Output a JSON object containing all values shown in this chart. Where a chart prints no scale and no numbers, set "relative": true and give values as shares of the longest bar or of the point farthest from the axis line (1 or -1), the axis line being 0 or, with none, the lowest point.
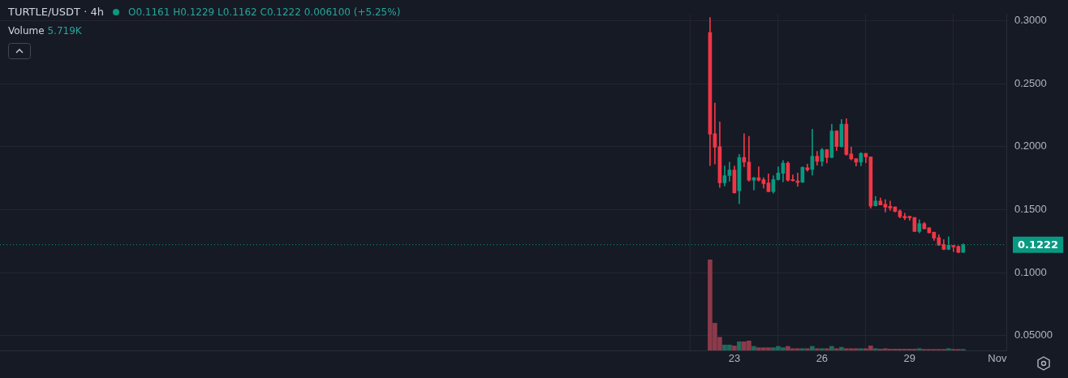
{
  "chart_data": [
    {
      "type": "candlestick",
      "title": "TURTLE/USDT · 4h",
      "annotations": [
        "O0.1161 H0.1229 L0.1162 C0.1222 0.006100 (+5.25%)"
      ],
      "x": [
        22.167,
        22.333,
        22.5,
        22.667,
        22.833,
        23,
        23.167,
        23.333,
        23.5,
        23.667,
        23.833,
        24,
        24.167,
        24.333,
        24.5,
        24.667,
        24.833,
        25,
        25.167,
        25.333,
        25.5,
        25.667,
        25.833,
        26,
        26.167,
        26.333,
        26.5,
        26.667,
        26.833,
        27,
        27.167,
        27.333,
        27.5,
        27.667,
        27.833,
        28,
        28.167,
        28.333,
        28.5,
        28.667,
        28.833,
        29,
        29.167,
        29.333,
        29.5,
        29.667,
        29.833,
        30,
        30.167,
        30.333,
        30.5,
        30.667,
        30.833
      ],
      "ohlc": [
        [
          0.2906,
          0.3025,
          0.185,
          0.2099
        ],
        [
          0.2103,
          0.2346,
          0.1862,
          0.1996
        ],
        [
          0.1999,
          0.2196,
          0.1675,
          0.1712
        ],
        [
          0.1712,
          0.1846,
          0.1687,
          0.177
        ],
        [
          0.177,
          0.1877,
          0.1726,
          0.1815
        ],
        [
          0.1815,
          0.1846,
          0.163,
          0.1634
        ],
        [
          0.165,
          0.1938,
          0.1547,
          0.1914
        ],
        [
          0.1914,
          0.2103,
          0.184,
          0.1877
        ],
        [
          0.1877,
          0.2082,
          0.1726,
          0.1733
        ],
        [
          0.1733,
          0.1757,
          0.1656,
          0.1753
        ],
        [
          0.1753,
          0.184,
          0.1726,
          0.1733
        ],
        [
          0.1737,
          0.1753,
          0.1671,
          0.1706
        ],
        [
          0.1712,
          0.1784,
          0.164,
          0.1644
        ],
        [
          0.1644,
          0.177,
          0.163,
          0.1739
        ],
        [
          0.1739,
          0.184,
          0.1733,
          0.179
        ],
        [
          0.1788,
          0.1891,
          0.172,
          0.187
        ],
        [
          0.187,
          0.188,
          0.1726,
          0.1733
        ],
        [
          0.1739,
          0.1776,
          0.1726,
          0.1731
        ],
        [
          0.1728,
          0.179,
          0.1685,
          0.1716
        ],
        [
          0.1718,
          0.184,
          0.1716,
          0.1835
        ],
        [
          0.1832,
          0.1862,
          0.1805,
          0.1815
        ],
        [
          0.1819,
          0.2138,
          0.1774,
          0.1924
        ],
        [
          0.1924,
          0.1963,
          0.1852,
          0.1883
        ],
        [
          0.1883,
          0.1986,
          0.1846,
          0.1975
        ],
        [
          0.1975,
          0.1979,
          0.187,
          0.1914
        ],
        [
          0.1914,
          0.2179,
          0.1912,
          0.2123
        ],
        [
          0.2123,
          0.2129,
          0.1969,
          0.2
        ],
        [
          0.2,
          0.2216,
          0.1996,
          0.2179
        ],
        [
          0.2179,
          0.2222,
          0.1932,
          0.1938
        ],
        [
          0.1941,
          0.1996,
          0.1895,
          0.1903
        ],
        [
          0.1905,
          0.1905,
          0.1846,
          0.1877
        ],
        [
          0.1877,
          0.1953,
          0.1848,
          0.1947
        ],
        [
          0.1947,
          0.1947,
          0.1872,
          0.1918
        ],
        [
          0.192,
          0.192,
          0.1512,
          0.1527
        ],
        [
          0.1531,
          0.1605,
          0.1527,
          0.1568
        ],
        [
          0.1568,
          0.1593,
          0.1537,
          0.1537
        ],
        [
          0.1543,
          0.158,
          0.1481,
          0.152
        ],
        [
          0.1527,
          0.1568,
          0.1494,
          0.1512
        ],
        [
          0.1521,
          0.1521,
          0.1481,
          0.1486
        ],
        [
          0.149,
          0.15,
          0.1434,
          0.1444
        ],
        [
          0.1447,
          0.1472,
          0.142,
          0.1434
        ],
        [
          0.1447,
          0.1447,
          0.1415,
          0.1435
        ],
        [
          0.1438,
          0.1438,
          0.1327,
          0.1327
        ],
        [
          0.1327,
          0.142,
          0.1315,
          0.1389
        ],
        [
          0.1389,
          0.14,
          0.1348,
          0.1348
        ],
        [
          0.1356,
          0.1356,
          0.1313,
          0.1317
        ],
        [
          0.1321,
          0.1323,
          0.1255,
          0.1274
        ],
        [
          0.1278,
          0.1302,
          0.1216,
          0.1218
        ],
        [
          0.1224,
          0.1263,
          0.1182,
          0.1185
        ],
        [
          0.1185,
          0.1286,
          0.1182,
          0.1218
        ],
        [
          0.1216,
          0.1218,
          0.1167,
          0.1204
        ],
        [
          0.1208,
          0.1212,
          0.1158,
          0.1161
        ],
        [
          0.1161,
          0.1229,
          0.116,
          0.1222
        ]
      ],
      "colors": [
        "#f23645",
        "#f23645",
        "#f23645",
        "#089981",
        "#089981",
        "#f23645",
        "#089981",
        "#f23645",
        "#f23645",
        "#089981",
        "#f23645",
        "#f23645",
        "#f23645",
        "#089981",
        "#089981",
        "#089981",
        "#f23645",
        "#f23645",
        "#f23645",
        "#089981",
        "#f23645",
        "#089981",
        "#f23645",
        "#089981",
        "#f23645",
        "#089981",
        "#f23645",
        "#089981",
        "#f23645",
        "#f23645",
        "#f23645",
        "#089981",
        "#f23645",
        "#f23645",
        "#089981",
        "#f23645",
        "#f23645",
        "#f23645",
        "#f23645",
        "#f23645",
        "#f23645",
        "#f23645",
        "#f23645",
        "#089981",
        "#f23645",
        "#f23645",
        "#f23645",
        "#f23645",
        "#f23645",
        "#089981",
        "#f23645",
        "#f23645",
        "#089981"
      ],
      "xlim": [
        -2.14,
        32.31
      ],
      "xticks": [
        23,
        26,
        29,
        {
          "value": 32,
          "label": "Nov"
        }
      ],
      "ylim": [
        0.0383,
        0.3049
      ],
      "yticks": [
        {
          "value": 0.05,
          "label": "0.05000"
        },
        {
          "value": 0.1,
          "label": "0.1000"
        },
        {
          "value": 0.15,
          "label": "0.1500"
        },
        {
          "value": 0.2,
          "label": "0.2000"
        },
        {
          "value": 0.25,
          "label": "0.2500"
        },
        {
          "value": 0.3,
          "label": "0.3000"
        }
      ],
      "ref_lines": [
        {
          "axis": "y",
          "value": 0.1222,
          "label": "0.1222",
          "color": "#089981",
          "line_style": "dotted"
        }
      ],
      "grid": true
    },
    {
      "type": "bar",
      "title": "Volume",
      "annotations": [
        "5.719K"
      ],
      "relative": true,
      "tick_labels": false,
      "x": [
        22.167,
        22.333,
        22.5,
        22.667,
        22.833,
        23,
        23.167,
        23.333,
        23.5,
        23.667,
        23.833,
        24,
        24.167,
        24.333,
        24.5,
        24.667,
        24.833,
        25,
        25.167,
        25.333,
        25.5,
        25.667,
        25.833,
        26,
        26.167,
        26.333,
        26.5,
        26.667,
        26.833,
        27,
        27.167,
        27.333,
        27.5,
        27.667,
        27.833,
        28,
        28.167,
        28.333,
        28.5,
        28.667,
        28.833,
        29,
        29.167,
        29.333,
        29.5,
        29.667,
        29.833,
        30,
        30.167,
        30.333,
        30.5,
        30.667,
        30.833
      ],
      "xlim": [
        -2.14,
        32.31
      ],
      "colors": [
        "#8e3a4a",
        "#8e3a4a",
        "#8e3a4a",
        "#1f6b5c",
        "#1f6b5c",
        "#8e3a4a",
        "#1f6b5c",
        "#8e3a4a",
        "#8e3a4a",
        "#1f6b5c",
        "#8e3a4a",
        "#8e3a4a",
        "#8e3a4a",
        "#1f6b5c",
        "#1f6b5c",
        "#1f6b5c",
        "#8e3a4a",
        "#8e3a4a",
        "#8e3a4a",
        "#1f6b5c",
        "#8e3a4a",
        "#1f6b5c",
        "#8e3a4a",
        "#1f6b5c",
        "#8e3a4a",
        "#1f6b5c",
        "#8e3a4a",
        "#1f6b5c",
        "#8e3a4a",
        "#8e3a4a",
        "#8e3a4a",
        "#1f6b5c",
        "#8e3a4a",
        "#8e3a4a",
        "#1f6b5c",
        "#8e3a4a",
        "#8e3a4a",
        "#8e3a4a",
        "#8e3a4a",
        "#8e3a4a",
        "#8e3a4a",
        "#8e3a4a",
        "#8e3a4a",
        "#1f6b5c",
        "#8e3a4a",
        "#8e3a4a",
        "#8e3a4a",
        "#8e3a4a",
        "#8e3a4a",
        "#1f6b5c",
        "#8e3a4a",
        "#8e3a4a",
        "#1f6b5c"
      ],
      "values": [
        1,
        0.3,
        0.145,
        0.06,
        0.06,
        0.05,
        0.095,
        0.095,
        0.105,
        0.045,
        0.03,
        0.03,
        0.03,
        0.03,
        0.045,
        0.03,
        0.045,
        0.02,
        0.02,
        0.02,
        0.02,
        0.045,
        0.02,
        0.02,
        0.02,
        0.045,
        0.02,
        0.035,
        0.02,
        0.02,
        0.02,
        0.02,
        0.02,
        0.05,
        0.02,
        0.015,
        0.02,
        0.015,
        0.015,
        0.015,
        0.015,
        0.015,
        0.015,
        0.02,
        0.012,
        0.012,
        0.012,
        0.012,
        0.012,
        0.02,
        0.012,
        0.012,
        0.012
      ]
    }
  ]
}
